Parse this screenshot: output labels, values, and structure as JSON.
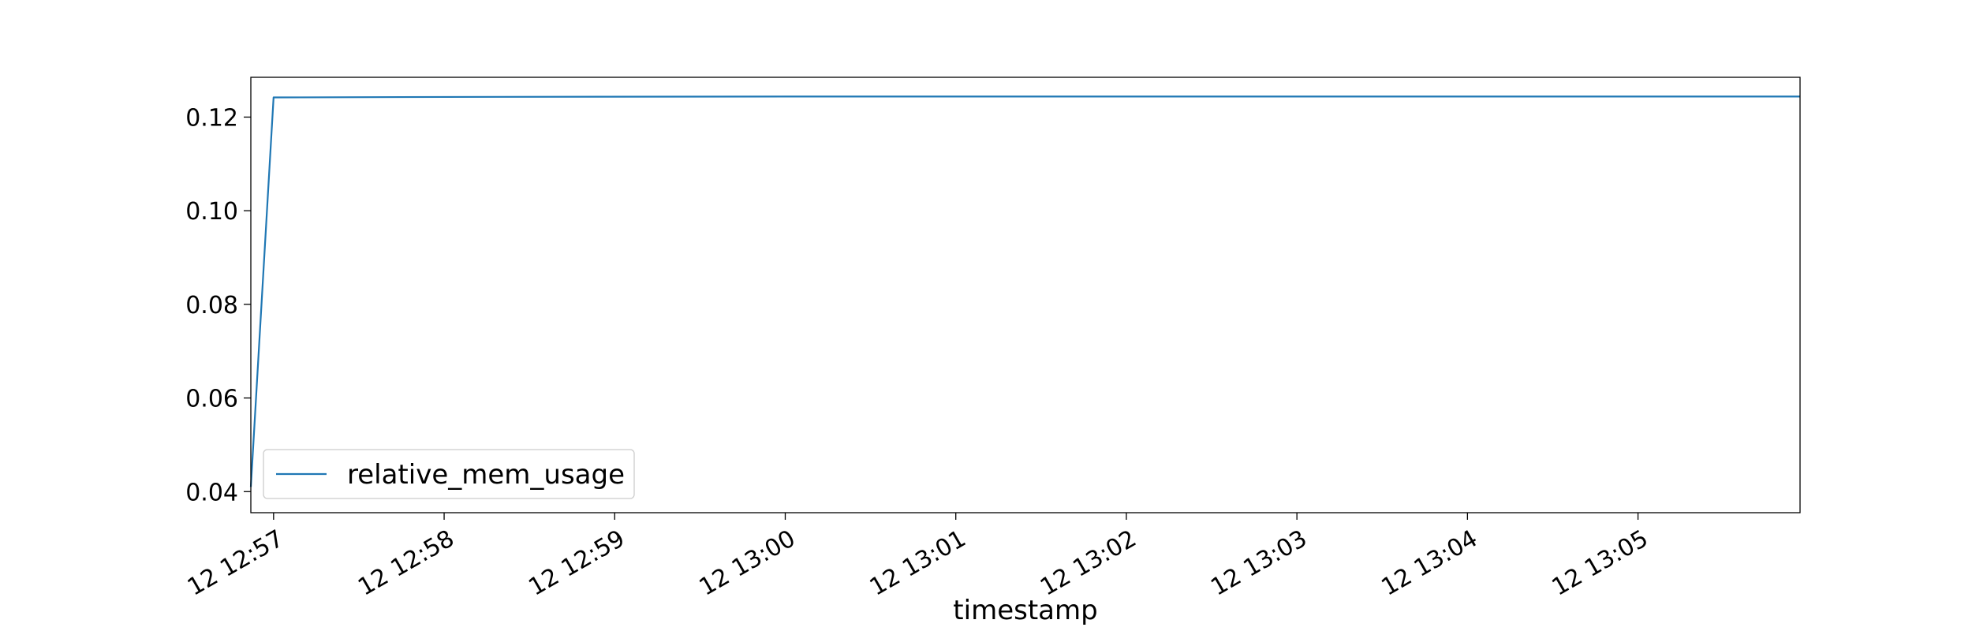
{
  "chart_data": {
    "type": "line",
    "title": "",
    "xlabel": "timestamp",
    "ylabel": "",
    "x_is_time": true,
    "xlim": [
      "12:56:52",
      "13:05:57"
    ],
    "ylim": [
      0.0355,
      0.1285
    ],
    "x_ticks": [
      {
        "value": "12:57",
        "label": "12 12:57"
      },
      {
        "value": "12:58",
        "label": "12 12:58"
      },
      {
        "value": "12:59",
        "label": "12 12:59"
      },
      {
        "value": "13:00",
        "label": "12 13:00"
      },
      {
        "value": "13:01",
        "label": "12 13:01"
      },
      {
        "value": "13:02",
        "label": "12 13:02"
      },
      {
        "value": "13:03",
        "label": "12 13:03"
      },
      {
        "value": "13:04",
        "label": "12 13:04"
      },
      {
        "value": "13:05",
        "label": "12 13:05"
      }
    ],
    "y_ticks": [
      {
        "value": 0.04,
        "label": "0.04"
      },
      {
        "value": 0.06,
        "label": "0.06"
      },
      {
        "value": 0.08,
        "label": "0.08"
      },
      {
        "value": 0.1,
        "label": "0.10"
      },
      {
        "value": 0.12,
        "label": "0.12"
      }
    ],
    "grid": false,
    "legend_position": "lower-left",
    "series": [
      {
        "name": "relative_mem_usage",
        "color": "#1f77b4",
        "points": [
          {
            "x": "12:56:52",
            "y": 0.041
          },
          {
            "x": "12:57:00",
            "y": 0.1242
          },
          {
            "x": "12:58:00",
            "y": 0.1243
          },
          {
            "x": "13:00:00",
            "y": 0.1244
          },
          {
            "x": "13:05:57",
            "y": 0.1244
          }
        ]
      }
    ]
  }
}
